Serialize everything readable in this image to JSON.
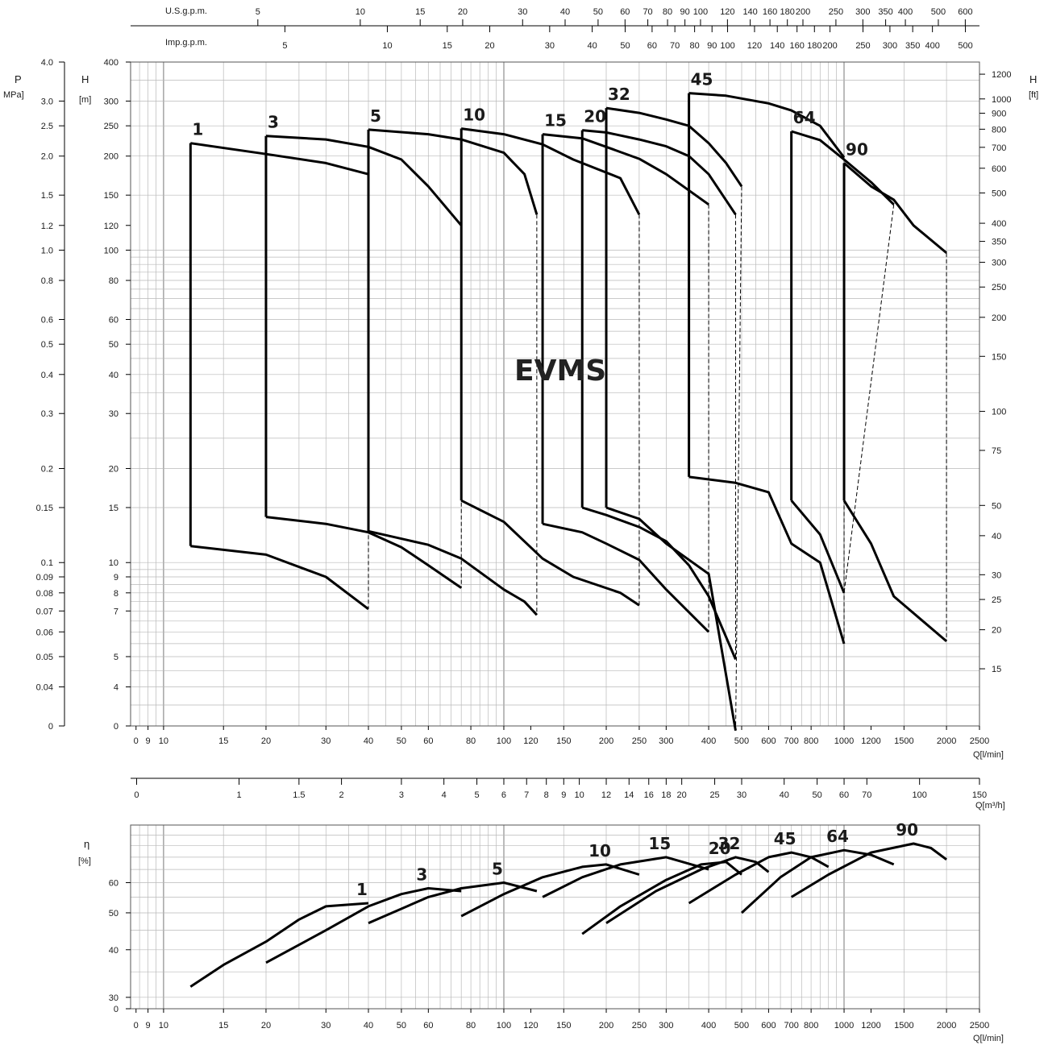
{
  "title": "EVMS",
  "chart_data": [
    {
      "type": "line",
      "name": "head-curves",
      "axes": {
        "x_bottom": {
          "label": "Q[l/min]",
          "scale": "log",
          "range": [
            8,
            2500
          ],
          "ticks": [
            "0",
            "9",
            "10",
            "15",
            "20",
            "30",
            "40",
            "50",
            "60",
            "80",
            "100",
            "120",
            "150",
            "200",
            "250",
            "300",
            "400",
            "500",
            "600",
            "700",
            "800",
            "1000",
            "1200",
            "1500",
            "2000",
            "2500"
          ]
        },
        "x_top_us": {
          "label": "U.S.g.p.m.",
          "ticks": [
            "5",
            "10",
            "15",
            "20",
            "30",
            "40",
            "50",
            "60",
            "70",
            "80",
            "90",
            "100",
            "120",
            "140",
            "160",
            "180",
            "200",
            "250",
            "300",
            "350",
            "400",
            "500",
            "600"
          ]
        },
        "x_top_imp": {
          "label": "Imp.g.p.m.",
          "ticks": [
            "5",
            "10",
            "15",
            "20",
            "30",
            "40",
            "50",
            "60",
            "70",
            "80",
            "90",
            "100",
            "120",
            "140",
            "160",
            "180",
            "200",
            "250",
            "300",
            "350",
            "400",
            "500"
          ]
        },
        "y_left_m": {
          "label": "H\n[m]",
          "scale": "log",
          "range": [
            3,
            400
          ],
          "ticks": [
            "0",
            "4",
            "5",
            "7",
            "8",
            "9",
            "10",
            "15",
            "20",
            "30",
            "40",
            "50",
            "60",
            "80",
            "100",
            "120",
            "150",
            "200",
            "250",
            "300",
            "400"
          ]
        },
        "y_left_mpa": {
          "label": "P\nMPa]",
          "ticks": [
            "0",
            "0.04",
            "0.05",
            "0.06",
            "0.07",
            "0.08",
            "0.09",
            "0.1",
            "0.15",
            "0.2",
            "0.3",
            "0.4",
            "0.5",
            "0.6",
            "0.8",
            "1.0",
            "1.2",
            "1.5",
            "2.0",
            "2.5",
            "3.0",
            "4.0"
          ]
        },
        "y_right_ft": {
          "label": "H\n[ft]",
          "ticks": [
            "15",
            "20",
            "25",
            "30",
            "40",
            "50",
            "75",
            "100",
            "150",
            "200",
            "250",
            "300",
            "350",
            "400",
            "500",
            "600",
            "700",
            "800",
            "900",
            "1000",
            "1200"
          ]
        }
      },
      "series": [
        {
          "name": "1",
          "upper": [
            [
              12,
              220
            ],
            [
              20,
              203
            ],
            [
              30,
              190
            ],
            [
              40,
              175
            ]
          ],
          "lower": [
            [
              12,
              11.3
            ],
            [
              20,
              10.6
            ],
            [
              30,
              9
            ],
            [
              40,
              7.1
            ]
          ]
        },
        {
          "name": "3",
          "upper": [
            [
              20,
              232
            ],
            [
              30,
              226
            ],
            [
              40,
              214
            ],
            [
              50,
              195
            ],
            [
              60,
              160
            ],
            [
              75,
              120
            ]
          ],
          "lower": [
            [
              20,
              14
            ],
            [
              30,
              13.3
            ],
            [
              40,
              12.5
            ],
            [
              50,
              11.2
            ],
            [
              60,
              9.8
            ],
            [
              75,
              8.3
            ]
          ]
        },
        {
          "name": "5",
          "upper": [
            [
              40,
              243
            ],
            [
              60,
              235
            ],
            [
              75,
              226
            ],
            [
              100,
              205
            ],
            [
              115,
              175
            ],
            [
              125,
              130
            ]
          ],
          "lower": [
            [
              40,
              12.6
            ],
            [
              60,
              11.4
            ],
            [
              75,
              10.3
            ],
            [
              100,
              8.2
            ],
            [
              115,
              7.5
            ],
            [
              125,
              6.8
            ]
          ]
        },
        {
          "name": "10",
          "upper": [
            [
              75,
              245
            ],
            [
              100,
              235
            ],
            [
              130,
              218
            ],
            [
              160,
              195
            ],
            [
              220,
              170
            ],
            [
              250,
              130
            ]
          ],
          "lower": [
            [
              75,
              15.8
            ],
            [
              100,
              13.5
            ],
            [
              130,
              10.3
            ],
            [
              160,
              9
            ],
            [
              220,
              8
            ],
            [
              250,
              7.3
            ]
          ]
        },
        {
          "name": "15",
          "upper": [
            [
              130,
              235
            ],
            [
              170,
              228
            ],
            [
              200,
              214
            ],
            [
              250,
              196
            ],
            [
              300,
              175
            ],
            [
              400,
              140
            ]
          ],
          "lower": [
            [
              130,
              13.3
            ],
            [
              170,
              12.5
            ],
            [
              200,
              11.5
            ],
            [
              250,
              10.2
            ],
            [
              300,
              8.2
            ],
            [
              400,
              6
            ]
          ]
        },
        {
          "name": "20",
          "upper": [
            [
              170,
              242
            ],
            [
              200,
              238
            ],
            [
              250,
              226
            ],
            [
              300,
              215
            ],
            [
              350,
              200
            ],
            [
              400,
              175
            ],
            [
              480,
              130
            ]
          ],
          "lower": [
            [
              170,
              15
            ],
            [
              200,
              14.2
            ],
            [
              250,
              13
            ],
            [
              300,
              11.7
            ],
            [
              350,
              9.8
            ],
            [
              400,
              7.8
            ],
            [
              480,
              4.9
            ]
          ]
        },
        {
          "name": "32",
          "upper": [
            [
              200,
              285
            ],
            [
              250,
              275
            ],
            [
              300,
              262
            ],
            [
              350,
              250
            ],
            [
              400,
              220
            ],
            [
              450,
              190
            ],
            [
              500,
              160
            ]
          ],
          "lower": [
            [
              200,
              15
            ],
            [
              250,
              13.8
            ],
            [
              300,
              11.5
            ],
            [
              400,
              9.2
            ],
            [
              480,
              2.9
            ]
          ]
        },
        {
          "name": "45",
          "upper": [
            [
              350,
              318
            ],
            [
              450,
              312
            ],
            [
              600,
              295
            ],
            [
              700,
              280
            ],
            [
              850,
              250
            ],
            [
              1000,
              198
            ]
          ],
          "lower": [
            [
              350,
              18.8
            ],
            [
              480,
              18
            ],
            [
              600,
              16.8
            ],
            [
              700,
              11.5
            ],
            [
              850,
              10
            ],
            [
              1000,
              5.5
            ]
          ]
        },
        {
          "name": "64",
          "upper": [
            [
              700,
              240
            ],
            [
              850,
              225
            ],
            [
              1000,
              195
            ],
            [
              1200,
              165
            ],
            [
              1400,
              140
            ]
          ],
          "lower": [
            [
              700,
              15.8
            ],
            [
              850,
              12.3
            ],
            [
              1000,
              8
            ]
          ]
        },
        {
          "name": "90",
          "upper": [
            [
              1000,
              190
            ],
            [
              1200,
              160
            ],
            [
              1400,
              145
            ],
            [
              1600,
              120
            ],
            [
              2000,
              98
            ]
          ],
          "lower": [
            [
              1000,
              15.8
            ],
            [
              1200,
              11.5
            ],
            [
              1400,
              7.8
            ],
            [
              2000,
              5.6
            ]
          ]
        }
      ]
    },
    {
      "type": "line",
      "name": "efficiency-curves",
      "axes": {
        "x_mid_m3h": {
          "label": "Q[m³/h]",
          "ticks": [
            "0",
            "1",
            "1.5",
            "2",
            "3",
            "4",
            "5",
            "6",
            "7",
            "8",
            "9",
            "10",
            "12",
            "14",
            "16",
            "18",
            "20",
            "25",
            "30",
            "40",
            "50",
            "60",
            "70",
            "100",
            "150"
          ]
        },
        "x_bottom": {
          "label": "Q[l/min]",
          "ticks": [
            "0",
            "9",
            "10",
            "15",
            "20",
            "30",
            "40",
            "50",
            "60",
            "80",
            "100",
            "120",
            "150",
            "200",
            "250",
            "300",
            "400",
            "500",
            "600",
            "700",
            "800",
            "1000",
            "1200",
            "1500",
            "2000",
            "2500"
          ]
        },
        "y_left": {
          "label": "η\n[%]",
          "ticks": [
            "0",
            "30",
            "40",
            "50",
            "60"
          ]
        }
      },
      "series": [
        {
          "name": "1",
          "points": [
            [
              12,
              32
            ],
            [
              15,
              36.5
            ],
            [
              20,
              42
            ],
            [
              25,
              48
            ],
            [
              30,
              52
            ],
            [
              40,
              53
            ]
          ]
        },
        {
          "name": "3",
          "points": [
            [
              20,
              37
            ],
            [
              30,
              45
            ],
            [
              40,
              52
            ],
            [
              50,
              56
            ],
            [
              60,
              58
            ],
            [
              75,
              57
            ]
          ]
        },
        {
          "name": "5",
          "points": [
            [
              40,
              47
            ],
            [
              60,
              55
            ],
            [
              75,
              58
            ],
            [
              100,
              60
            ],
            [
              125,
              57
            ]
          ]
        },
        {
          "name": "10",
          "points": [
            [
              75,
              49
            ],
            [
              100,
              56
            ],
            [
              130,
              62
            ],
            [
              170,
              66
            ],
            [
              200,
              67
            ],
            [
              250,
              63
            ]
          ]
        },
        {
          "name": "15",
          "points": [
            [
              130,
              55
            ],
            [
              170,
              62
            ],
            [
              220,
              67
            ],
            [
              300,
              70
            ],
            [
              400,
              65
            ]
          ]
        },
        {
          "name": "20",
          "points": [
            [
              170,
              44
            ],
            [
              220,
              52
            ],
            [
              300,
              61
            ],
            [
              380,
              67
            ],
            [
              450,
              68
            ],
            [
              500,
              63
            ]
          ]
        },
        {
          "name": "32",
          "points": [
            [
              200,
              47
            ],
            [
              280,
              57
            ],
            [
              380,
              65
            ],
            [
              480,
              70
            ],
            [
              550,
              68
            ],
            [
              600,
              64
            ]
          ]
        },
        {
          "name": "45",
          "points": [
            [
              350,
              53
            ],
            [
              480,
              63
            ],
            [
              600,
              70
            ],
            [
              700,
              72
            ],
            [
              800,
              70
            ],
            [
              900,
              66
            ]
          ]
        },
        {
          "name": "64",
          "points": [
            [
              500,
              50
            ],
            [
              650,
              62
            ],
            [
              800,
              70
            ],
            [
              1000,
              73
            ],
            [
              1200,
              71
            ],
            [
              1400,
              67
            ]
          ]
        },
        {
          "name": "90",
          "points": [
            [
              700,
              55
            ],
            [
              900,
              63
            ],
            [
              1200,
              72
            ],
            [
              1600,
              76
            ],
            [
              1800,
              74
            ],
            [
              2000,
              69
            ]
          ]
        }
      ]
    }
  ]
}
